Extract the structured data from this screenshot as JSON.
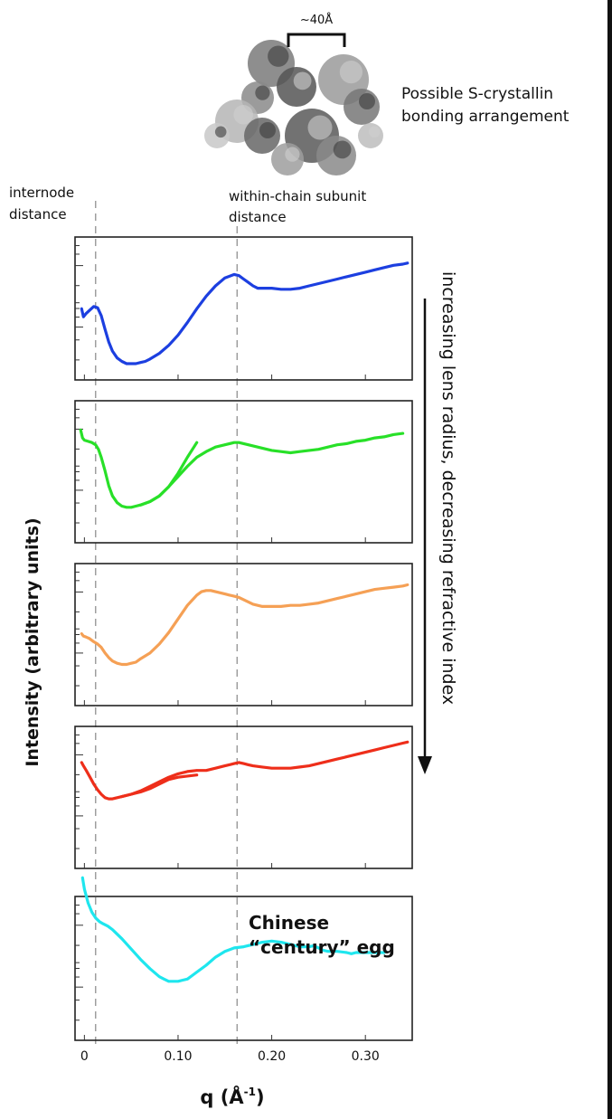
{
  "chart_data": {
    "type": "line",
    "xlabel": "q (Å",
    "xlabel_sup": "-1",
    "xlabel_close": ")",
    "ylabel": "Intensity (arbitrary units)",
    "xlim": [
      -0.01,
      0.35
    ],
    "x_ticks": [
      0,
      0.1,
      0.2,
      0.3
    ],
    "x_tick_labels": [
      "0",
      "0.10",
      "0.20",
      "0.30"
    ],
    "y_scale": "log",
    "grid": false,
    "guides": [
      {
        "x": 0.012,
        "label_lines": [
          "internode",
          "distance"
        ]
      },
      {
        "x": 0.163,
        "label_lines": [
          "within-chain subunit",
          "distance"
        ]
      }
    ],
    "arrow_label": "increasing lens radius, decreasing refractive index",
    "structure": {
      "scale_label": "~40Å",
      "caption_lines": [
        "Possible S-crystallin",
        "bonding arrangement"
      ]
    },
    "panels": [
      {
        "color": "#1c3fe0",
        "annotation": [],
        "series": [
          {
            "x": [
              -0.003,
              -0.001,
              0.002,
              0.006,
              0.01,
              0.014,
              0.018,
              0.022,
              0.026,
              0.03,
              0.035,
              0.04,
              0.045,
              0.05,
              0.055,
              0.06,
              0.065,
              0.07,
              0.08,
              0.09,
              0.1,
              0.11,
              0.12,
              0.13,
              0.14,
              0.15,
              0.16,
              0.165,
              0.17,
              0.175,
              0.18,
              0.185,
              0.19,
              0.2,
              0.21,
              0.22,
              0.23,
              0.24,
              0.25,
              0.26,
              0.27,
              0.28,
              0.29,
              0.3,
              0.31,
              0.32,
              0.33,
              0.34,
              0.345
            ],
            "y": [
              0.56,
              0.49,
              0.52,
              0.55,
              0.58,
              0.57,
              0.5,
              0.38,
              0.27,
              0.19,
              0.13,
              0.1,
              0.08,
              0.08,
              0.08,
              0.09,
              0.1,
              0.12,
              0.17,
              0.24,
              0.33,
              0.44,
              0.56,
              0.67,
              0.76,
              0.83,
              0.86,
              0.85,
              0.82,
              0.79,
              0.76,
              0.74,
              0.74,
              0.74,
              0.73,
              0.73,
              0.74,
              0.76,
              0.78,
              0.8,
              0.82,
              0.84,
              0.86,
              0.88,
              0.9,
              0.92,
              0.94,
              0.95,
              0.96
            ]
          }
        ]
      },
      {
        "color": "#28e028",
        "annotation": [],
        "series": [
          {
            "x": [
              -0.004,
              -0.002,
              0.0,
              0.004,
              0.008,
              0.012,
              0.015,
              0.018,
              0.022,
              0.026,
              0.03,
              0.035,
              0.04,
              0.045,
              0.05,
              0.055,
              0.06,
              0.07,
              0.08,
              0.09,
              0.1,
              0.11,
              0.12,
              0.13,
              0.14,
              0.15,
              0.16,
              0.165,
              0.17,
              0.175,
              0.18,
              0.19,
              0.2,
              0.21,
              0.22,
              0.23,
              0.24,
              0.25,
              0.26,
              0.27,
              0.28,
              0.29,
              0.3,
              0.31,
              0.32,
              0.33,
              0.34
            ],
            "y": [
              0.93,
              0.86,
              0.84,
              0.83,
              0.82,
              0.8,
              0.76,
              0.69,
              0.57,
              0.44,
              0.35,
              0.29,
              0.26,
              0.25,
              0.25,
              0.26,
              0.27,
              0.3,
              0.35,
              0.43,
              0.52,
              0.61,
              0.69,
              0.74,
              0.78,
              0.8,
              0.82,
              0.82,
              0.81,
              0.8,
              0.79,
              0.77,
              0.75,
              0.74,
              0.73,
              0.74,
              0.75,
              0.76,
              0.78,
              0.8,
              0.81,
              0.83,
              0.84,
              0.86,
              0.87,
              0.89,
              0.9
            ]
          },
          {
            "x": [
              0.06,
              0.07,
              0.08,
              0.09,
              0.1,
              0.11,
              0.12
            ],
            "y": [
              0.27,
              0.3,
              0.35,
              0.43,
              0.55,
              0.69,
              0.82
            ]
          }
        ]
      },
      {
        "color": "#f5a055",
        "annotation": [],
        "series": [
          {
            "x": [
              -0.003,
              -0.001,
              0.002,
              0.005,
              0.01,
              0.014,
              0.018,
              0.022,
              0.026,
              0.03,
              0.035,
              0.04,
              0.045,
              0.05,
              0.055,
              0.06,
              0.07,
              0.08,
              0.09,
              0.1,
              0.11,
              0.12,
              0.125,
              0.13,
              0.135,
              0.14,
              0.145,
              0.15,
              0.155,
              0.16,
              0.165,
              0.17,
              0.175,
              0.18,
              0.19,
              0.2,
              0.21,
              0.22,
              0.23,
              0.24,
              0.25,
              0.26,
              0.27,
              0.28,
              0.29,
              0.3,
              0.31,
              0.32,
              0.33,
              0.34,
              0.345
            ],
            "y": [
              0.57,
              0.55,
              0.54,
              0.53,
              0.5,
              0.48,
              0.45,
              0.4,
              0.36,
              0.33,
              0.31,
              0.3,
              0.3,
              0.31,
              0.32,
              0.35,
              0.4,
              0.48,
              0.58,
              0.7,
              0.82,
              0.91,
              0.94,
              0.95,
              0.95,
              0.94,
              0.93,
              0.92,
              0.91,
              0.9,
              0.89,
              0.87,
              0.85,
              0.83,
              0.81,
              0.81,
              0.81,
              0.82,
              0.82,
              0.83,
              0.84,
              0.86,
              0.88,
              0.9,
              0.92,
              0.94,
              0.96,
              0.97,
              0.98,
              0.99,
              1.0
            ]
          }
        ]
      },
      {
        "color": "#ee2e1a",
        "annotation": [],
        "series": [
          {
            "x": [
              -0.003,
              -0.001,
              0.002,
              0.006,
              0.01,
              0.014,
              0.018,
              0.022,
              0.026,
              0.03,
              0.035,
              0.04,
              0.05,
              0.06,
              0.07,
              0.08,
              0.09,
              0.1,
              0.11,
              0.12,
              0.13,
              0.14,
              0.15,
              0.16,
              0.165,
              0.17,
              0.175,
              0.18,
              0.19,
              0.2,
              0.21,
              0.22,
              0.23,
              0.24,
              0.25,
              0.26,
              0.27,
              0.28,
              0.29,
              0.3,
              0.31,
              0.32,
              0.33,
              0.34,
              0.345
            ],
            "y": [
              0.87,
              0.84,
              0.8,
              0.74,
              0.68,
              0.63,
              0.59,
              0.56,
              0.55,
              0.55,
              0.56,
              0.57,
              0.59,
              0.62,
              0.66,
              0.7,
              0.74,
              0.77,
              0.79,
              0.8,
              0.8,
              0.82,
              0.84,
              0.86,
              0.87,
              0.86,
              0.85,
              0.84,
              0.83,
              0.82,
              0.82,
              0.82,
              0.83,
              0.84,
              0.86,
              0.88,
              0.9,
              0.92,
              0.94,
              0.96,
              0.98,
              1.0,
              1.02,
              1.04,
              1.05
            ]
          },
          {
            "x": [
              0.04,
              0.05,
              0.06,
              0.07,
              0.08,
              0.09,
              0.1,
              0.11,
              0.12
            ],
            "y": [
              0.57,
              0.59,
              0.61,
              0.64,
              0.68,
              0.72,
              0.74,
              0.75,
              0.76
            ]
          }
        ]
      },
      {
        "color": "#1ee6ee",
        "annotation": [
          "Chinese",
          "“century” egg"
        ],
        "series": [
          {
            "x": [
              -0.002,
              0.0,
              0.004,
              0.008,
              0.012,
              0.016,
              0.02,
              0.025,
              0.03,
              0.04,
              0.05,
              0.06,
              0.07,
              0.08,
              0.085,
              0.09,
              0.095,
              0.1,
              0.105,
              0.11,
              0.115,
              0.12,
              0.13,
              0.14,
              0.15,
              0.16,
              0.17,
              0.18,
              0.19,
              0.2,
              0.21,
              0.22,
              0.23,
              0.24,
              0.245,
              0.25,
              0.255,
              0.26,
              0.27,
              0.28,
              0.285,
              0.29,
              0.3,
              0.31,
              0.32
            ],
            "y": [
              1.35,
              1.25,
              1.13,
              1.05,
              1.0,
              0.97,
              0.95,
              0.93,
              0.9,
              0.82,
              0.73,
              0.64,
              0.56,
              0.49,
              0.47,
              0.45,
              0.45,
              0.45,
              0.46,
              0.47,
              0.5,
              0.53,
              0.59,
              0.66,
              0.71,
              0.74,
              0.75,
              0.77,
              0.79,
              0.8,
              0.79,
              0.77,
              0.75,
              0.75,
              0.76,
              0.74,
              0.72,
              0.71,
              0.71,
              0.7,
              0.69,
              0.7,
              0.7,
              0.7,
              0.7
            ]
          }
        ]
      }
    ]
  }
}
